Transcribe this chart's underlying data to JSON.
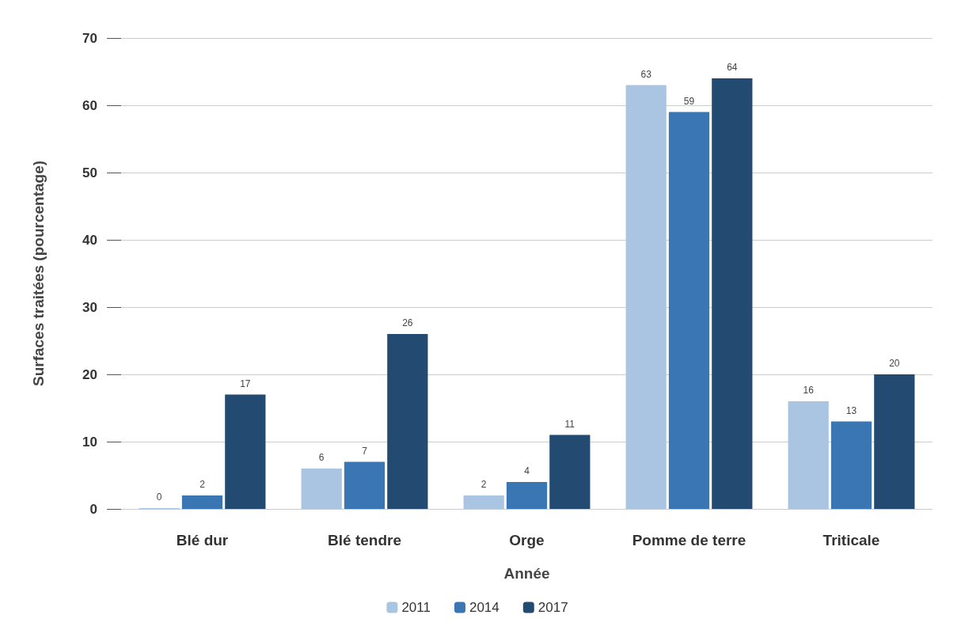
{
  "chart_data": {
    "type": "bar",
    "xlabel": "Année",
    "ylabel": "Surfaces traitées (pourcentage)",
    "categories": [
      "Blé dur",
      "Blé tendre",
      "Orge",
      "Pomme de terre",
      "Triticale"
    ],
    "series": [
      {
        "name": "2011",
        "color": "#a9c5e2",
        "values": [
          0,
          6,
          2,
          63,
          16
        ]
      },
      {
        "name": "2014",
        "color": "#3a76b3",
        "values": [
          2,
          7,
          4,
          59,
          13
        ]
      },
      {
        "name": "2017",
        "color": "#234a70",
        "values": [
          17,
          26,
          11,
          64,
          20
        ]
      }
    ],
    "ylim": [
      0,
      70
    ],
    "yticks": [
      0,
      10,
      20,
      30,
      40,
      50,
      60,
      70
    ],
    "grid": "y",
    "legend": "bottom",
    "data_labels": true
  }
}
